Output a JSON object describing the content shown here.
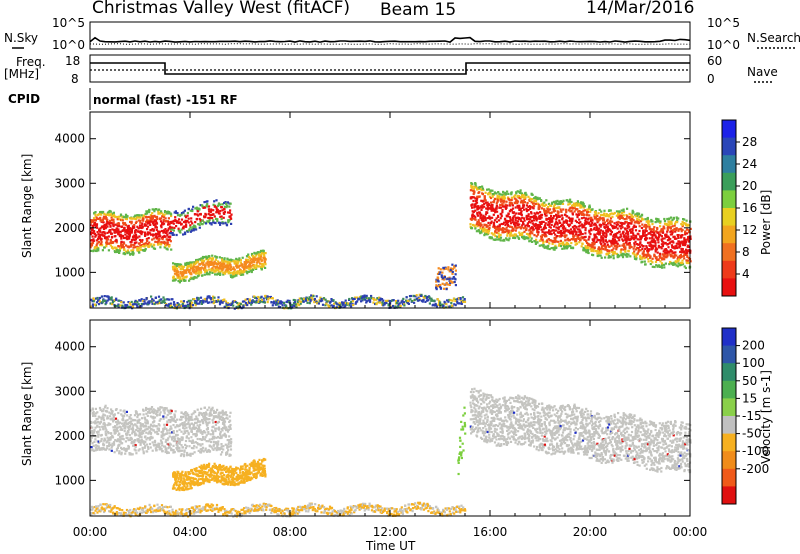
{
  "header": {
    "station": "Christmas Valley West (fitACF)",
    "beam": "Beam 15",
    "date": "14/Mar/2016"
  },
  "side_labels": {
    "nsky": "N.Sky",
    "nsearch": "N.Search",
    "freq": "Freq.",
    "freq_unit": "[MHz]",
    "nave": "Nave",
    "cpid": "CPID",
    "cpid_value": "normal (fast) -151 RF"
  },
  "noise_axis": {
    "lo": "10^0",
    "hi": "10^5"
  },
  "freq_axis": {
    "left_ticks": [
      "18",
      "8"
    ],
    "right_ticks": [
      "60",
      "0"
    ]
  },
  "chart_data": [
    {
      "type": "heatmap",
      "panel": "power",
      "ylabel": "Slant Range [km]",
      "y_ticks": [
        1000,
        2000,
        3000,
        4000
      ],
      "ylim": [
        200,
        4600
      ],
      "colorbar_label": "Power [dB]",
      "colorbar_ticks": [
        "4",
        "8",
        "12",
        "16",
        "20",
        "24",
        "28"
      ],
      "colorbar_colors": [
        "#1c22e8",
        "#2a46b8",
        "#2e7fa0",
        "#3a9e5a",
        "#7ccf3e",
        "#e8d020",
        "#f2a51e",
        "#f07020",
        "#ee3a1a",
        "#e81010"
      ]
    },
    {
      "type": "heatmap",
      "panel": "velocity",
      "ylabel": "Slant Range [km]",
      "y_ticks": [
        1000,
        2000,
        3000,
        4000
      ],
      "ylim": [
        200,
        4600
      ],
      "colorbar_label": "Velocity [m s-1]",
      "colorbar_ticks": [
        "200",
        "100",
        "50",
        "15",
        "-15",
        "-50",
        "-100",
        "-200"
      ],
      "colorbar_colors": [
        "#2030c8",
        "#2e56a8",
        "#2f8c6a",
        "#4caf50",
        "#8ad04a",
        "#c0c0c0",
        "#f6b020",
        "#f08c1a",
        "#f05a1a",
        "#e01010"
      ]
    }
  ],
  "time_axis": {
    "label": "Time UT",
    "ticks": [
      "00:00",
      "04:00",
      "08:00",
      "12:00",
      "16:00",
      "20:00",
      "00:00"
    ]
  }
}
